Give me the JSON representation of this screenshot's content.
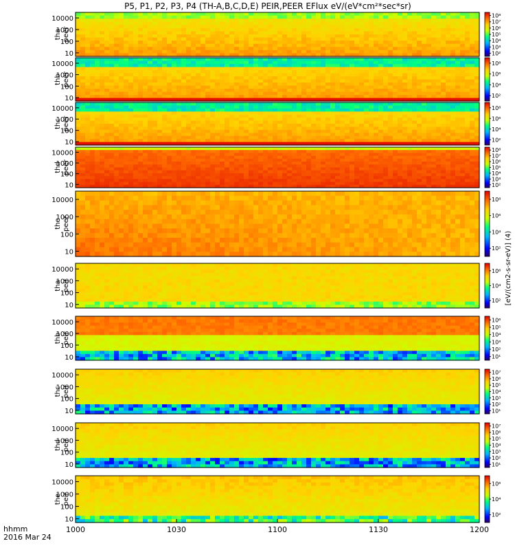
{
  "chart_data": {
    "type": "heatmap",
    "title": "P5, P1, P2, P3, P4 (TH-A,B,C,D,E) PEIR,PEER EFlux eV/(eV*cm²*sec*sr)",
    "xlabel": "hhmm",
    "date_label": "2016 Mar 24",
    "x_ticks": [
      "1000",
      "1030",
      "1100",
      "1130",
      "1200"
    ],
    "x_range": [
      "10:00",
      "12:00"
    ],
    "y_scale": "log",
    "y_range": [
      5,
      30000
    ],
    "y_ticks": [
      "10",
      "100",
      "1000",
      "10000"
    ],
    "colorbar_label": "[eV/(cm2-s-sr-eV)] (4)",
    "colorbar_scale": "log",
    "panels": [
      {
        "probe": "tha",
        "species": "peer",
        "probe_label": "tha",
        "species_label": "peer",
        "colorbar_ticks": [
          "10⁸",
          "10⁷",
          "10⁶",
          "10⁵",
          "10⁴",
          "10³",
          "10²"
        ],
        "clim": [
          100,
          100000000
        ]
      },
      {
        "probe": "thb",
        "species": "peer",
        "probe_label": "thb",
        "species_label": "peer",
        "colorbar_ticks": [
          "10⁸",
          "10⁶",
          "10⁴",
          "10²"
        ],
        "clim": [
          100,
          100000000
        ]
      },
      {
        "probe": "thc",
        "species": "peer",
        "probe_label": "thc",
        "species_label": "peer",
        "colorbar_ticks": [
          "10⁸",
          "10⁶",
          "10⁴",
          "10²"
        ],
        "clim": [
          100,
          100000000
        ]
      },
      {
        "probe": "thd",
        "species": "peer",
        "probe_label": "thd",
        "species_label": "peer",
        "colorbar_ticks": [
          "10⁸",
          "10⁷",
          "10⁶",
          "10⁵",
          "10⁴",
          "10³",
          "10²"
        ],
        "clim": [
          100,
          100000000
        ]
      },
      {
        "probe": "the",
        "species": "peer",
        "probe_label": "the",
        "species_label": "peer",
        "colorbar_ticks": [
          "10⁸",
          "10⁶",
          "10⁴",
          "10²"
        ],
        "clim": [
          100,
          100000000
        ]
      },
      {
        "probe": "tha",
        "species": "peir",
        "probe_label": "tha",
        "species_label": "peir",
        "colorbar_ticks": [
          "10⁶",
          "10⁴",
          "10²"
        ],
        "clim": [
          100,
          10000000
        ]
      },
      {
        "probe": "thb",
        "species": "peir",
        "probe_label": "thb",
        "species_label": "peir",
        "colorbar_ticks": [
          "10⁶",
          "10⁵",
          "10⁴",
          "10³",
          "10²",
          "10¹"
        ],
        "clim": [
          10,
          10000000
        ]
      },
      {
        "probe": "thc",
        "species": "peir",
        "probe_label": "thc",
        "species_label": "peir",
        "colorbar_ticks": [
          "10⁷",
          "10⁶",
          "10⁵",
          "10⁴",
          "10³",
          "10²",
          "10¹"
        ],
        "clim": [
          10,
          10000000
        ]
      },
      {
        "probe": "thd",
        "species": "peir",
        "probe_label": "thd",
        "species_label": "peir",
        "colorbar_ticks": [
          "10⁷",
          "10⁶",
          "10⁵",
          "10⁴",
          "10³",
          "10²",
          "10¹"
        ],
        "clim": [
          10,
          10000000
        ]
      },
      {
        "probe": "the",
        "species": "peir",
        "probe_label": "the",
        "species_label": "peir",
        "colorbar_ticks": [
          "10⁶",
          "10⁴",
          "10²"
        ],
        "clim": [
          100,
          10000000
        ]
      }
    ]
  }
}
